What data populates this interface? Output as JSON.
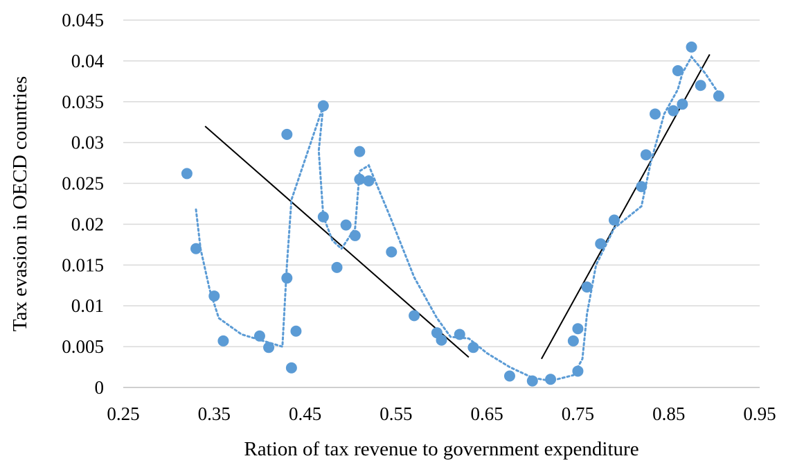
{
  "chart_data": {
    "type": "scatter",
    "title": "",
    "xlabel": "Ration of tax revenue to government expenditure",
    "ylabel": "Tax evasion in OECD countries",
    "xlim": [
      0.25,
      0.95
    ],
    "ylim": [
      0,
      0.045
    ],
    "x_ticks": [
      "0.25",
      "0.35",
      "0.45",
      "0.55",
      "0.65",
      "0.75",
      "0.85",
      "0.95"
    ],
    "y_ticks": [
      "0",
      "0.005",
      "0.01",
      "0.015",
      "0.02",
      "0.025",
      "0.03",
      "0.035",
      "0.04",
      "0.045"
    ],
    "grid": "horizontal",
    "colors": {
      "points": "#5b9bd5",
      "trend": "#000000",
      "grid": "#d9d9d9"
    },
    "series": [
      {
        "values": [
          [
            0.32,
            0.0262
          ],
          [
            0.33,
            0.017
          ],
          [
            0.35,
            0.0112
          ],
          [
            0.36,
            0.0057
          ],
          [
            0.4,
            0.0063
          ],
          [
            0.41,
            0.0049
          ],
          [
            0.43,
            0.031
          ],
          [
            0.43,
            0.0134
          ],
          [
            0.435,
            0.0024
          ],
          [
            0.44,
            0.0069
          ],
          [
            0.47,
            0.0345
          ],
          [
            0.47,
            0.0209
          ],
          [
            0.485,
            0.0147
          ],
          [
            0.495,
            0.0199
          ],
          [
            0.505,
            0.0186
          ],
          [
            0.51,
            0.0289
          ],
          [
            0.51,
            0.0255
          ],
          [
            0.52,
            0.0253
          ],
          [
            0.545,
            0.0166
          ],
          [
            0.57,
            0.0088
          ],
          [
            0.595,
            0.0067
          ],
          [
            0.6,
            0.0058
          ],
          [
            0.62,
            0.0065
          ],
          [
            0.635,
            0.0049
          ],
          [
            0.675,
            0.0014
          ],
          [
            0.7,
            0.0008
          ],
          [
            0.72,
            0.001
          ],
          [
            0.745,
            0.0057
          ],
          [
            0.75,
            0.002
          ],
          [
            0.75,
            0.0072
          ],
          [
            0.76,
            0.0123
          ],
          [
            0.775,
            0.0176
          ],
          [
            0.79,
            0.0205
          ],
          [
            0.82,
            0.0246
          ],
          [
            0.825,
            0.0285
          ],
          [
            0.835,
            0.0335
          ],
          [
            0.855,
            0.0339
          ],
          [
            0.86,
            0.0388
          ],
          [
            0.865,
            0.0347
          ],
          [
            0.875,
            0.0417
          ],
          [
            0.885,
            0.037
          ],
          [
            0.905,
            0.0357
          ]
        ]
      }
    ],
    "moving_average": {
      "style": "dotted",
      "values": [
        [
          0.33,
          0.0218
        ],
        [
          0.335,
          0.017
        ],
        [
          0.345,
          0.012
        ],
        [
          0.355,
          0.0085
        ],
        [
          0.38,
          0.0065
        ],
        [
          0.41,
          0.0055
        ],
        [
          0.425,
          0.005
        ],
        [
          0.43,
          0.015
        ],
        [
          0.435,
          0.023
        ],
        [
          0.47,
          0.0345
        ],
        [
          0.465,
          0.029
        ],
        [
          0.47,
          0.021
        ],
        [
          0.48,
          0.018
        ],
        [
          0.49,
          0.017
        ],
        [
          0.505,
          0.0195
        ],
        [
          0.51,
          0.0265
        ],
        [
          0.52,
          0.0272
        ],
        [
          0.545,
          0.0205
        ],
        [
          0.57,
          0.0135
        ],
        [
          0.595,
          0.0085
        ],
        [
          0.61,
          0.0062
        ],
        [
          0.63,
          0.006
        ],
        [
          0.65,
          0.0042
        ],
        [
          0.675,
          0.0025
        ],
        [
          0.7,
          0.0012
        ],
        [
          0.72,
          0.0008
        ],
        [
          0.745,
          0.0015
        ],
        [
          0.755,
          0.0035
        ],
        [
          0.76,
          0.009
        ],
        [
          0.77,
          0.015
        ],
        [
          0.79,
          0.0195
        ],
        [
          0.82,
          0.0222
        ],
        [
          0.83,
          0.0275
        ],
        [
          0.845,
          0.0335
        ],
        [
          0.86,
          0.0365
        ],
        [
          0.865,
          0.0385
        ],
        [
          0.875,
          0.0405
        ],
        [
          0.89,
          0.0385
        ],
        [
          0.905,
          0.036
        ]
      ]
    },
    "trend_lines": [
      {
        "x": [
          0.34,
          0.63
        ],
        "y": [
          0.032,
          0.0037
        ]
      },
      {
        "x": [
          0.71,
          0.895
        ],
        "y": [
          0.0035,
          0.0408
        ]
      }
    ]
  }
}
